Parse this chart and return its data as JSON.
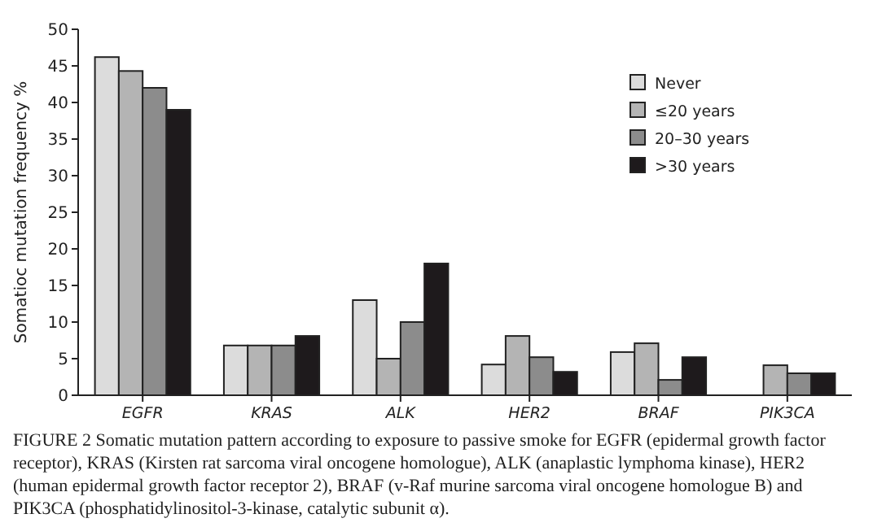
{
  "chart_data": {
    "type": "bar",
    "ylabel": "Somatioc mutation frequency %",
    "categories": [
      "EGFR",
      "KRAS",
      "ALK",
      "HER2",
      "BRAF",
      "PIK3CA"
    ],
    "series": [
      {
        "name": "Never",
        "color": "#dcdcdc",
        "values": [
          46.2,
          6.8,
          13,
          4.2,
          5.9,
          null
        ]
      },
      {
        "name": "≤20 years",
        "color": "#b4b4b4",
        "values": [
          44.3,
          6.8,
          5,
          8.1,
          7.1,
          4.1
        ]
      },
      {
        "name": "20–30 years",
        "color": "#8c8c8c",
        "values": [
          42,
          6.8,
          10,
          5.2,
          2.1,
          3
        ]
      },
      {
        "name": ">30 years",
        "color": "#1e1a1c",
        "values": [
          39,
          8.1,
          18,
          3.2,
          5.2,
          3
        ]
      }
    ],
    "ylim": [
      0,
      50
    ],
    "yticks": [
      0,
      5,
      10,
      15,
      20,
      25,
      30,
      35,
      40,
      45,
      50
    ],
    "legend": "top right",
    "annotations": [
      "FIGURE 2 Somatic mutation pattern according to exposure to passive smoke for EGFR (epidermal growth factor receptor), KRAS (Kirsten rat sarcoma viral oncogene homologue), ALK (anaplastic lymphoma kinase), HER2 (human epidermal growth factor receptor 2), BRAF (v-Raf murine sarcoma viral oncogene homologue B) and PIK3CA (phosphatidylinositol-3-kinase, catalytic subunit α)."
    ]
  }
}
